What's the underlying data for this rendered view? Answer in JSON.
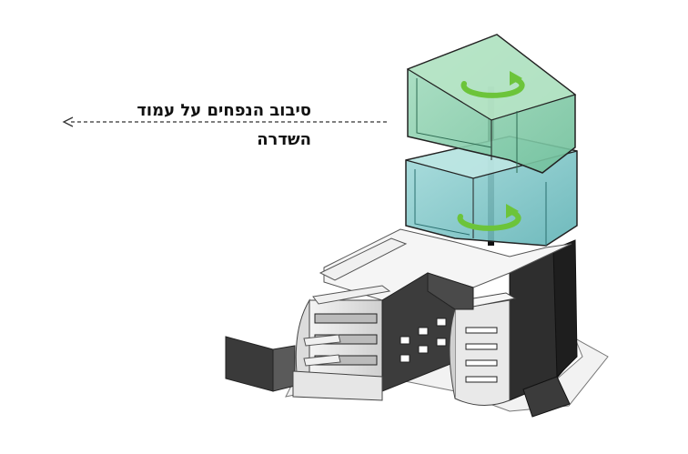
{
  "annotation": {
    "line1": "סיבוב הנפחים על עמוד",
    "line2": "השדרה"
  },
  "colors": {
    "volume_top": "#7ec9a6",
    "volume_bottom": "#7cc6c6",
    "rotation_arrow": "#6cc43a",
    "spine": "#111111",
    "building_light": "#eeeeee",
    "building_dark": "#2a2a2a"
  },
  "icons": [
    "rotation-arrow-icon",
    "rotation-arrow-icon",
    "left-arrow-icon"
  ]
}
